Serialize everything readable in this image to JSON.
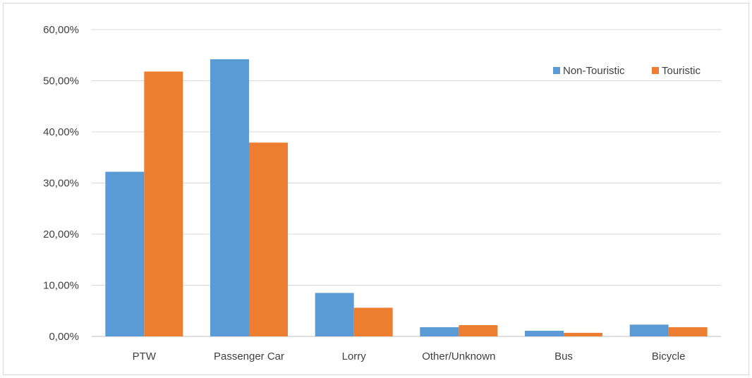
{
  "chart_data": {
    "type": "bar",
    "title": "",
    "xlabel": "",
    "ylabel": "",
    "categories": [
      "PTW",
      "Passenger Car",
      "Lorry",
      "Other/Unknown",
      "Bus",
      "Bicycle"
    ],
    "series": [
      {
        "name": "Non-Touristic",
        "color": "#5b9bd5",
        "values": [
          32.2,
          54.2,
          8.5,
          1.8,
          1.1,
          2.3
        ]
      },
      {
        "name": "Touristic",
        "color": "#ed7d31",
        "values": [
          51.8,
          37.9,
          5.6,
          2.2,
          0.7,
          1.8
        ]
      }
    ],
    "ylim": [
      0,
      60
    ],
    "yticks": [
      0,
      10,
      20,
      30,
      40,
      50,
      60
    ],
    "ytick_labels": [
      "0,00%",
      "10,00%",
      "20,00%",
      "30,00%",
      "40,00%",
      "50,00%",
      "60,00%"
    ],
    "grid": true,
    "legend_position": "top-right"
  }
}
